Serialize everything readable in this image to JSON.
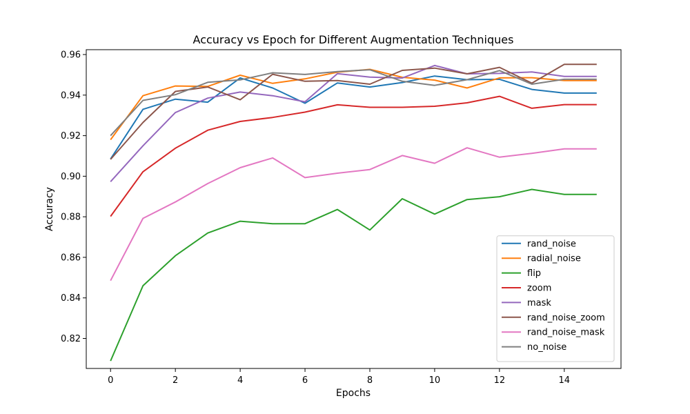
{
  "chart_data": {
    "type": "line",
    "title": "Accuracy vs Epoch for Different Augmentation Techniques",
    "xlabel": "Epochs",
    "ylabel": "Accuracy",
    "xlim": [
      -0.75,
      15.75
    ],
    "ylim": [
      0.8052,
      0.9624
    ],
    "xticks": [
      0,
      2,
      4,
      6,
      8,
      10,
      12,
      14
    ],
    "xtick_labels": [
      "0",
      "2",
      "4",
      "6",
      "8",
      "10",
      "12",
      "14"
    ],
    "yticks": [
      0.82,
      0.84,
      0.86,
      0.88,
      0.9,
      0.92,
      0.94,
      0.96
    ],
    "ytick_labels": [
      "0.82",
      "0.84",
      "0.86",
      "0.88",
      "0.90",
      "0.92",
      "0.94",
      "0.96"
    ],
    "grid": false,
    "legend_position": "lower-right",
    "x": [
      0,
      1,
      2,
      3,
      4,
      5,
      6,
      7,
      8,
      9,
      10,
      11,
      12,
      13,
      14,
      15
    ],
    "series": [
      {
        "name": "rand_noise",
        "color": "#1f77b4",
        "values": [
          0.9085,
          0.933,
          0.938,
          0.9365,
          0.9485,
          0.9435,
          0.936,
          0.946,
          0.944,
          0.9462,
          0.9494,
          0.9476,
          0.9478,
          0.9428,
          0.941,
          0.941
        ]
      },
      {
        "name": "radial_noise",
        "color": "#ff7f0e",
        "values": [
          0.918,
          0.9397,
          0.9445,
          0.9443,
          0.9498,
          0.9458,
          0.948,
          0.9513,
          0.9527,
          0.9488,
          0.9474,
          0.9435,
          0.9485,
          0.9486,
          0.9472,
          0.9472
        ]
      },
      {
        "name": "flip",
        "color": "#2ca02c",
        "values": [
          0.8089,
          0.846,
          0.8608,
          0.872,
          0.8778,
          0.8766,
          0.8766,
          0.8836,
          0.8735,
          0.8889,
          0.8813,
          0.8885,
          0.8899,
          0.8935,
          0.891,
          0.891
        ]
      },
      {
        "name": "zoom",
        "color": "#d62728",
        "values": [
          0.8802,
          0.9022,
          0.9138,
          0.9227,
          0.927,
          0.929,
          0.9316,
          0.9352,
          0.934,
          0.934,
          0.9345,
          0.9362,
          0.9394,
          0.9335,
          0.9353,
          0.9353
        ]
      },
      {
        "name": "mask",
        "color": "#9467bd",
        "values": [
          0.8973,
          0.915,
          0.9314,
          0.9385,
          0.9415,
          0.9397,
          0.9367,
          0.9506,
          0.9489,
          0.9484,
          0.9546,
          0.9505,
          0.9507,
          0.9514,
          0.9492,
          0.9492
        ]
      },
      {
        "name": "rand_noise_zoom",
        "color": "#8c564b",
        "values": [
          0.9083,
          0.9265,
          0.9418,
          0.944,
          0.9377,
          0.9503,
          0.9468,
          0.9472,
          0.9454,
          0.9522,
          0.9533,
          0.9505,
          0.9537,
          0.9459,
          0.9552,
          0.9552
        ]
      },
      {
        "name": "rand_noise_mask",
        "color": "#e377c2",
        "values": [
          0.8485,
          0.8792,
          0.8873,
          0.8964,
          0.9042,
          0.909,
          0.8993,
          0.9015,
          0.9033,
          0.9102,
          0.9064,
          0.914,
          0.9094,
          0.9113,
          0.9135,
          0.9135
        ]
      },
      {
        "name": "no_noise",
        "color": "#7f7f7f",
        "values": [
          0.92,
          0.9374,
          0.9402,
          0.9463,
          0.9475,
          0.951,
          0.9502,
          0.9516,
          0.9525,
          0.9468,
          0.9448,
          0.9476,
          0.9521,
          0.9454,
          0.9478,
          0.9478
        ]
      }
    ]
  }
}
